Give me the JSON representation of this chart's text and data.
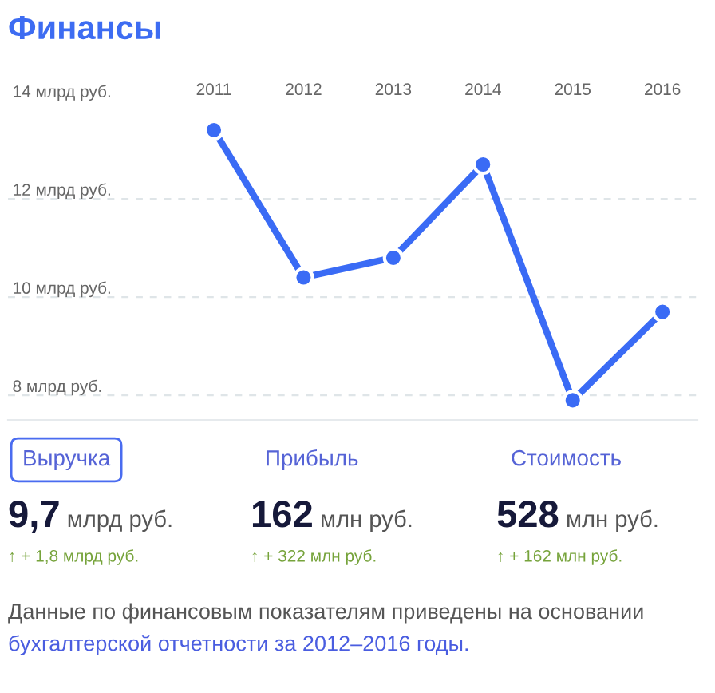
{
  "chart_data": [
    {
      "type": "line",
      "title": "Финансы",
      "categories": [
        "2011",
        "2012",
        "2013",
        "2014",
        "2015",
        "2016"
      ],
      "series": [
        {
          "color": "#3a6bf5",
          "values": [
            13.4,
            10.4,
            10.8,
            12.7,
            7.9,
            9.7
          ]
        }
      ],
      "ylim": [
        7.5,
        14
      ],
      "yticks": [
        {
          "value": 8,
          "label": "8 млрд руб."
        },
        {
          "value": 10,
          "label": "10 млрд руб."
        },
        {
          "value": 12,
          "label": "12 млрд руб."
        },
        {
          "value": 14,
          "label": "14 млрд руб."
        }
      ],
      "grid": "y",
      "marker": "circle",
      "line_style": "solid"
    },
    {
      "type": "other",
      "annotations": [
        "Выручка",
        "9,7",
        "млрд руб.",
        "↑ + 1,8 млрд руб.",
        "Прибыль",
        "162",
        "млн руб.",
        "↑ + 322 млн руб.",
        "Стоимость",
        "528",
        "млн руб.",
        "↑ + 162 млн руб.",
        "Данные по финансовым показателям приведены на основании",
        "бухгалтерской отчетности за 2012–2016 годы."
      ]
    }
  ]
}
